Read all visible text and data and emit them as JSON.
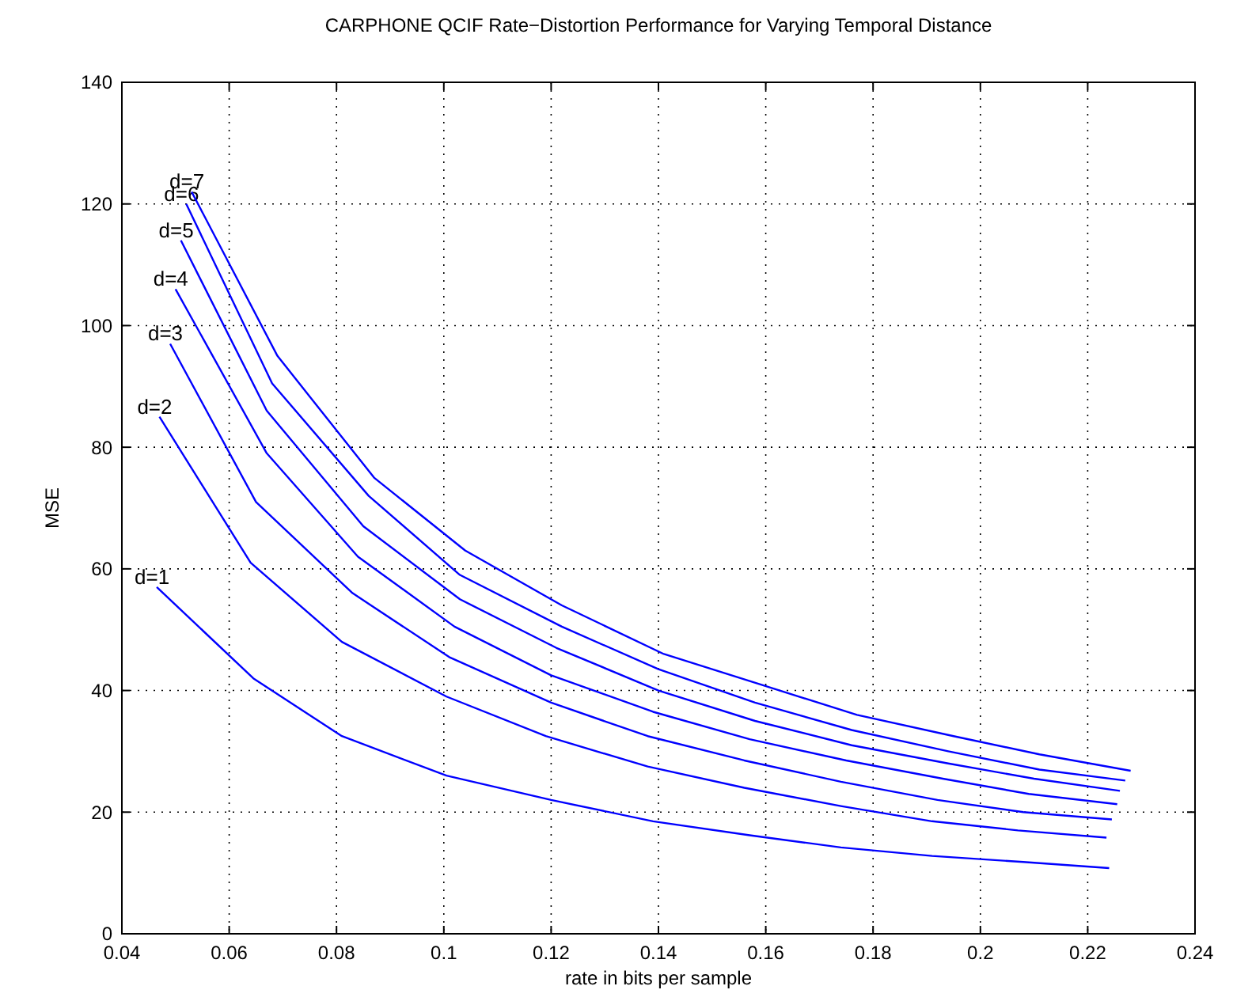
{
  "chart_data": {
    "type": "line",
    "title": "CARPHONE QCIF Rate−Distortion Performance for Varying Temporal Distance",
    "xlabel": "rate in bits per sample",
    "ylabel": "MSE",
    "xlim": [
      0.04,
      0.24
    ],
    "xticks": [
      0.04,
      0.06,
      0.08,
      0.1,
      0.12,
      0.14,
      0.16,
      0.18,
      0.2,
      0.22,
      0.24
    ],
    "ylim": [
      0,
      140
    ],
    "yticks": [
      0,
      20,
      40,
      60,
      80,
      100,
      120,
      140
    ],
    "grid": true,
    "legend": false,
    "marker": "none",
    "line_style": "solid",
    "series": [
      {
        "name": "d=1",
        "color": "#0000ff",
        "x": [
          0.0465,
          0.0645,
          0.081,
          0.1005,
          0.12,
          0.139,
          0.157,
          0.174,
          0.191,
          0.208,
          0.224
        ],
        "values": [
          57,
          42,
          32.5,
          26,
          22,
          18.5,
          16.2,
          14.2,
          12.8,
          11.8,
          10.8
        ]
      },
      {
        "name": "d=2",
        "color": "#0000ff",
        "x": [
          0.047,
          0.064,
          0.081,
          0.1005,
          0.119,
          0.138,
          0.156,
          0.174,
          0.191,
          0.207,
          0.2235
        ],
        "values": [
          85,
          61,
          48,
          39,
          32.5,
          27.5,
          24,
          21,
          18.5,
          17,
          15.8
        ]
      },
      {
        "name": "d=3",
        "color": "#0000ff",
        "x": [
          0.049,
          0.065,
          0.083,
          0.101,
          0.12,
          0.138,
          0.156,
          0.174,
          0.192,
          0.208,
          0.2245
        ],
        "values": [
          97,
          71,
          56,
          45.5,
          38,
          32.5,
          28.5,
          25,
          22,
          20,
          18.8
        ]
      },
      {
        "name": "d=4",
        "color": "#0000ff",
        "x": [
          0.05,
          0.067,
          0.084,
          0.102,
          0.12,
          0.139,
          0.157,
          0.175,
          0.193,
          0.209,
          0.2255
        ],
        "values": [
          106,
          79,
          62,
          50.5,
          42.5,
          36.5,
          32,
          28.5,
          25.5,
          23,
          21.3
        ]
      },
      {
        "name": "d=5",
        "color": "#0000ff",
        "x": [
          0.051,
          0.067,
          0.085,
          0.103,
          0.121,
          0.14,
          0.158,
          0.176,
          0.194,
          0.21,
          0.226
        ],
        "values": [
          114,
          86,
          67,
          55,
          47,
          40,
          35,
          31,
          28,
          25.5,
          23.5
        ]
      },
      {
        "name": "d=6",
        "color": "#0000ff",
        "x": [
          0.052,
          0.068,
          0.086,
          0.103,
          0.122,
          0.14,
          0.158,
          0.176,
          0.194,
          0.211,
          0.227
        ],
        "values": [
          120,
          90.5,
          72,
          59,
          50.5,
          43.5,
          38,
          33.5,
          30,
          27,
          25.2
        ]
      },
      {
        "name": "d=7",
        "color": "#0000ff",
        "x": [
          0.053,
          0.069,
          0.087,
          0.104,
          0.122,
          0.141,
          0.159,
          0.177,
          0.195,
          0.211,
          0.228
        ],
        "values": [
          122,
          95,
          75,
          63,
          54,
          46,
          41,
          36,
          32.5,
          29.5,
          26.8
        ]
      }
    ]
  }
}
